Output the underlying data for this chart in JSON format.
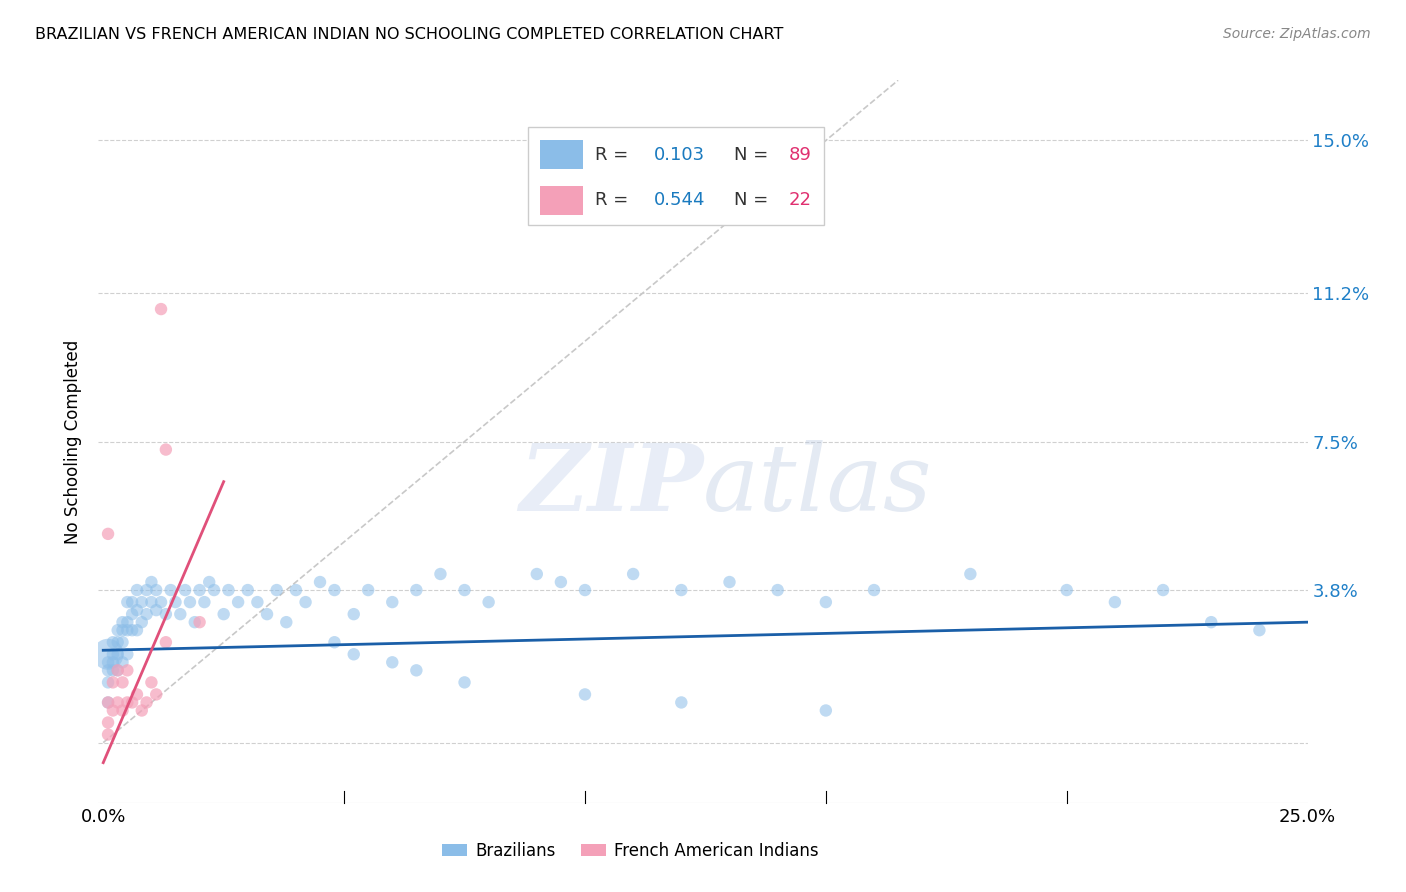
{
  "title": "BRAZILIAN VS FRENCH AMERICAN INDIAN NO SCHOOLING COMPLETED CORRELATION CHART",
  "source": "Source: ZipAtlas.com",
  "ylabel": "No Schooling Completed",
  "xlim": [
    0.0,
    0.25
  ],
  "ylim": [
    -0.015,
    0.165
  ],
  "ytick_vals": [
    0.0,
    0.038,
    0.075,
    0.112,
    0.15
  ],
  "ytick_labels": [
    "",
    "3.8%",
    "7.5%",
    "11.2%",
    "15.0%"
  ],
  "xtick_vals": [
    0.0,
    0.05,
    0.1,
    0.15,
    0.2,
    0.25
  ],
  "xtick_labels": [
    "0.0%",
    "",
    "",
    "",
    "",
    "25.0%"
  ],
  "R_brazilian": 0.103,
  "N_brazilian": 89,
  "R_french": 0.544,
  "N_french": 22,
  "watermark": "ZIPatlas",
  "blue_color": "#8bbde8",
  "pink_color": "#f4a0b8",
  "blue_line_color": "#1a5fa8",
  "pink_line_color": "#e0507a",
  "diag_color": "#c8c8c8",
  "ytick_color": "#2080c8",
  "legend_R_color": "#1a7abf",
  "legend_N_color": "#e03070",
  "br_x": [
    0.001,
    0.001,
    0.001,
    0.001,
    0.001,
    0.002,
    0.002,
    0.002,
    0.002,
    0.003,
    0.003,
    0.003,
    0.003,
    0.004,
    0.004,
    0.004,
    0.004,
    0.005,
    0.005,
    0.005,
    0.005,
    0.006,
    0.006,
    0.006,
    0.007,
    0.007,
    0.007,
    0.008,
    0.008,
    0.009,
    0.009,
    0.01,
    0.01,
    0.011,
    0.011,
    0.012,
    0.013,
    0.014,
    0.015,
    0.016,
    0.017,
    0.018,
    0.019,
    0.02,
    0.021,
    0.022,
    0.023,
    0.025,
    0.026,
    0.028,
    0.03,
    0.032,
    0.034,
    0.036,
    0.038,
    0.04,
    0.042,
    0.045,
    0.048,
    0.052,
    0.055,
    0.06,
    0.065,
    0.07,
    0.075,
    0.08,
    0.09,
    0.095,
    0.1,
    0.11,
    0.12,
    0.13,
    0.14,
    0.15,
    0.16,
    0.18,
    0.2,
    0.21,
    0.22,
    0.23,
    0.24,
    0.048,
    0.052,
    0.06,
    0.065,
    0.075,
    0.1,
    0.12,
    0.15
  ],
  "br_y": [
    0.022,
    0.02,
    0.018,
    0.015,
    0.01,
    0.025,
    0.022,
    0.02,
    0.018,
    0.028,
    0.025,
    0.022,
    0.018,
    0.03,
    0.028,
    0.025,
    0.02,
    0.035,
    0.03,
    0.028,
    0.022,
    0.035,
    0.032,
    0.028,
    0.038,
    0.033,
    0.028,
    0.035,
    0.03,
    0.038,
    0.032,
    0.04,
    0.035,
    0.038,
    0.033,
    0.035,
    0.032,
    0.038,
    0.035,
    0.032,
    0.038,
    0.035,
    0.03,
    0.038,
    0.035,
    0.04,
    0.038,
    0.032,
    0.038,
    0.035,
    0.038,
    0.035,
    0.032,
    0.038,
    0.03,
    0.038,
    0.035,
    0.04,
    0.038,
    0.032,
    0.038,
    0.035,
    0.038,
    0.042,
    0.038,
    0.035,
    0.042,
    0.04,
    0.038,
    0.042,
    0.038,
    0.04,
    0.038,
    0.035,
    0.038,
    0.042,
    0.038,
    0.035,
    0.038,
    0.03,
    0.028,
    0.025,
    0.022,
    0.02,
    0.018,
    0.015,
    0.012,
    0.01,
    0.008
  ],
  "br_sizes": [
    200,
    80,
    80,
    80,
    80,
    80,
    80,
    80,
    80,
    80,
    80,
    80,
    80,
    80,
    80,
    80,
    80,
    80,
    80,
    80,
    80,
    80,
    80,
    80,
    80,
    80,
    80,
    80,
    80,
    80,
    80,
    80,
    80,
    80,
    80,
    80,
    80,
    80,
    80,
    80,
    80,
    80,
    80,
    80,
    80,
    80,
    80,
    80,
    80,
    80,
    80,
    80,
    80,
    80,
    80,
    80,
    80,
    80,
    80,
    80,
    80,
    80,
    80,
    80,
    80,
    80,
    80,
    80,
    80,
    80,
    80,
    80,
    80,
    80,
    80,
    80,
    80,
    80,
    80,
    80,
    80,
    80,
    80,
    80,
    80,
    80,
    80,
    80,
    80
  ],
  "fr_x": [
    0.001,
    0.001,
    0.001,
    0.002,
    0.002,
    0.003,
    0.003,
    0.004,
    0.004,
    0.005,
    0.005,
    0.006,
    0.007,
    0.008,
    0.009,
    0.01,
    0.011,
    0.012,
    0.013,
    0.001,
    0.013,
    0.02
  ],
  "fr_y": [
    0.005,
    0.01,
    0.052,
    0.008,
    0.015,
    0.01,
    0.018,
    0.008,
    0.015,
    0.01,
    0.018,
    0.01,
    0.012,
    0.008,
    0.01,
    0.015,
    0.012,
    0.108,
    0.073,
    0.002,
    0.025,
    0.03
  ],
  "fr_sizes": [
    80,
    80,
    80,
    80,
    80,
    80,
    80,
    80,
    80,
    80,
    80,
    80,
    80,
    80,
    80,
    80,
    80,
    80,
    80,
    80,
    80,
    80
  ],
  "br_line_x": [
    0.0,
    0.25
  ],
  "br_line_y": [
    0.023,
    0.03
  ],
  "fr_line_x": [
    0.0,
    0.025
  ],
  "fr_line_y": [
    -0.005,
    0.065
  ]
}
